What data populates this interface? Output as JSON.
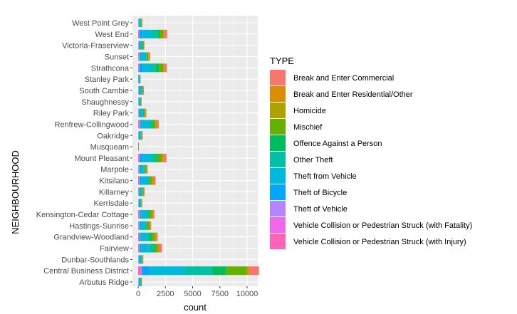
{
  "chart_data": {
    "type": "bar",
    "orientation": "horizontal",
    "stacked": true,
    "xlabel": "count",
    "ylabel": "NEIGHBOURHOOD",
    "xlim": [
      0,
      10600
    ],
    "xticks": [
      0,
      2500,
      5000,
      7500,
      10000
    ],
    "xtick_labels": [
      "0",
      "2500",
      "5000",
      "7500",
      "10000"
    ],
    "grid": true,
    "legend_title": "TYPE",
    "legend_position": "right",
    "categories": [
      "West Point Grey",
      "West End",
      "Victoria-Fraserview",
      "Sunset",
      "Strathcona",
      "Stanley Park",
      "South Cambie",
      "Shaughnessy",
      "Riley Park",
      "Renfrew-Collingwood",
      "Oakridge",
      "Musqueam",
      "Mount Pleasant",
      "Marpole",
      "Kitsilano",
      "Killarney",
      "Kerrisdale",
      "Kensington-Cedar Cottage",
      "Hastings-Sunrise",
      "Grandview-Woodland",
      "Fairview",
      "Dunbar-Southlands",
      "Central Business District",
      "Arbutus Ridge"
    ],
    "series": [
      {
        "name": "Break and Enter Commercial",
        "color": "#F8766D",
        "values": [
          20,
          250,
          25,
          50,
          200,
          3,
          35,
          15,
          40,
          120,
          30,
          2,
          250,
          60,
          130,
          40,
          20,
          80,
          80,
          130,
          230,
          25,
          900,
          20
        ]
      },
      {
        "name": "Break and Enter Residential/Other",
        "color": "#DB8E00",
        "values": [
          60,
          120,
          60,
          130,
          120,
          3,
          50,
          40,
          80,
          180,
          50,
          3,
          180,
          80,
          200,
          60,
          50,
          160,
          110,
          160,
          160,
          50,
          200,
          40
        ]
      },
      {
        "name": "Homicide",
        "color": "#AEA200",
        "values": [
          0,
          2,
          1,
          1,
          3,
          0,
          0,
          0,
          0,
          2,
          0,
          0,
          2,
          1,
          0,
          1,
          0,
          2,
          1,
          2,
          0,
          0,
          5,
          0
        ]
      },
      {
        "name": "Mischief",
        "color": "#64B200",
        "values": [
          40,
          330,
          70,
          100,
          400,
          10,
          60,
          30,
          100,
          220,
          50,
          3,
          380,
          100,
          200,
          80,
          40,
          200,
          150,
          260,
          260,
          50,
          1900,
          30
        ]
      },
      {
        "name": "Offence Against a Person",
        "color": "#00BD5C",
        "values": [
          10,
          150,
          30,
          50,
          300,
          5,
          20,
          8,
          40,
          120,
          20,
          2,
          200,
          40,
          50,
          40,
          10,
          100,
          80,
          200,
          70,
          10,
          1300,
          5
        ]
      },
      {
        "name": "Other Theft",
        "color": "#00C1A7",
        "values": [
          50,
          600,
          60,
          120,
          500,
          30,
          70,
          50,
          70,
          300,
          70,
          5,
          440,
          130,
          200,
          80,
          50,
          230,
          220,
          300,
          500,
          70,
          2500,
          50
        ]
      },
      {
        "name": "Theft from Vehicle",
        "color": "#00BADE",
        "values": [
          150,
          800,
          250,
          500,
          700,
          100,
          200,
          120,
          300,
          700,
          150,
          10,
          700,
          350,
          500,
          200,
          150,
          500,
          400,
          500,
          700,
          200,
          3300,
          150
        ]
      },
      {
        "name": "Theft of Bicycle",
        "color": "#00A6FF",
        "values": [
          20,
          300,
          20,
          40,
          300,
          40,
          40,
          20,
          50,
          80,
          20,
          2,
          280,
          40,
          200,
          20,
          20,
          60,
          60,
          110,
          150,
          20,
          650,
          20
        ]
      },
      {
        "name": "Theft of Vehicle",
        "color": "#B385FF",
        "values": [
          30,
          40,
          40,
          60,
          60,
          5,
          20,
          20,
          30,
          80,
          20,
          3,
          60,
          40,
          40,
          40,
          20,
          80,
          50,
          60,
          40,
          30,
          80,
          20
        ]
      },
      {
        "name": "Vehicle Collision or Pedestrian Struck (with Fatality)",
        "color": "#EF67EB",
        "values": [
          0,
          1,
          0,
          1,
          1,
          0,
          0,
          0,
          0,
          1,
          0,
          0,
          1,
          0,
          0,
          0,
          0,
          1,
          0,
          1,
          0,
          0,
          5,
          0
        ]
      },
      {
        "name": "Vehicle Collision or Pedestrian Struck (with Injury)",
        "color": "#FF63B6",
        "values": [
          20,
          70,
          20,
          50,
          50,
          5,
          30,
          15,
          40,
          90,
          20,
          2,
          100,
          40,
          80,
          30,
          20,
          80,
          40,
          70,
          80,
          20,
          250,
          20
        ]
      }
    ]
  }
}
